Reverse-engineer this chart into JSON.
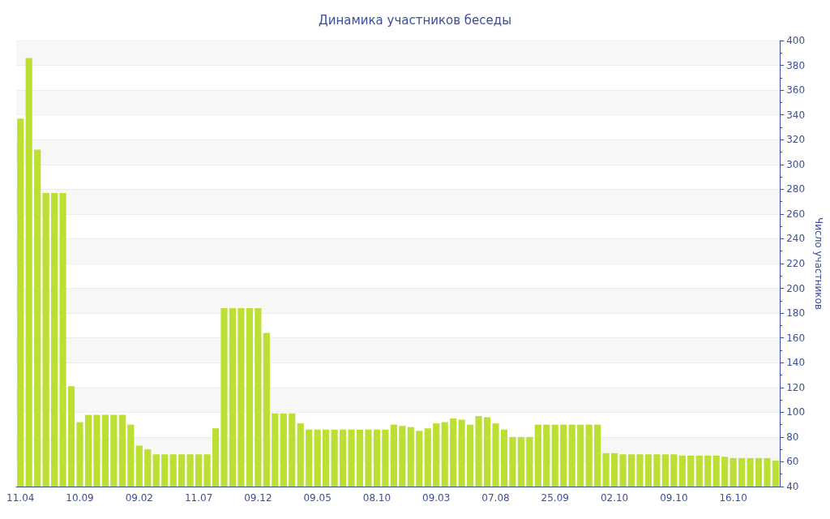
{
  "chart_data": {
    "type": "bar",
    "title": "Динамика участников беседы",
    "ylabel": "Число участников",
    "categories": [
      "11.04",
      null,
      null,
      null,
      null,
      null,
      null,
      "10.09",
      null,
      null,
      null,
      null,
      null,
      null,
      "09.02",
      null,
      null,
      null,
      null,
      null,
      null,
      "11.07",
      null,
      null,
      null,
      null,
      null,
      null,
      "09.12",
      null,
      null,
      null,
      null,
      null,
      null,
      "09.05",
      null,
      null,
      null,
      null,
      null,
      null,
      "08.10",
      null,
      null,
      null,
      null,
      null,
      null,
      "09.03",
      null,
      null,
      null,
      null,
      null,
      null,
      "07.08",
      null,
      null,
      null,
      null,
      null,
      null,
      "25.09",
      null,
      null,
      null,
      null,
      null,
      null,
      "02.10",
      null,
      null,
      null,
      null,
      null,
      null,
      "09.10",
      null,
      null,
      null,
      null,
      null,
      null,
      "16.10",
      null,
      null,
      null,
      null,
      null
    ],
    "values": [
      337,
      386,
      312,
      277,
      277,
      277,
      121,
      92,
      98,
      98,
      98,
      98,
      98,
      90,
      73,
      70,
      66,
      66,
      66,
      66,
      66,
      66,
      66,
      87,
      184,
      184,
      184,
      184,
      184,
      164,
      99,
      99,
      99,
      91,
      86,
      86,
      86,
      86,
      86,
      86,
      86,
      86,
      86,
      86,
      90,
      89,
      88,
      85,
      87,
      91,
      92,
      95,
      94,
      90,
      97,
      96,
      91,
      86,
      80,
      80,
      80,
      90,
      90,
      90,
      90,
      90,
      90,
      90,
      90,
      67,
      67,
      66,
      66,
      66,
      66,
      66,
      66,
      66,
      65,
      65,
      65,
      65,
      65,
      64,
      63,
      63,
      63,
      63,
      63,
      61
    ],
    "color": "#bbdf32",
    "ylim": [
      40,
      400
    ],
    "yticks": [
      40,
      60,
      80,
      100,
      120,
      140,
      160,
      180,
      200,
      220,
      240,
      260,
      280,
      300,
      320,
      340,
      360,
      380,
      400
    ],
    "grid": true
  }
}
